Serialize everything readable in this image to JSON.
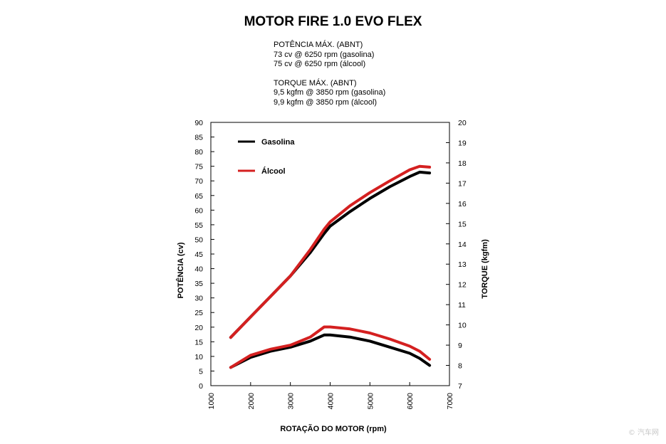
{
  "title": "MOTOR FIRE 1.0 EVO FLEX",
  "specs": {
    "power_header": "POTÊNCIA MÁX. (ABNT)",
    "power_gasolina": "73 cv @ 6250 rpm (gasolina)",
    "power_alcool": "75 cv @ 6250 rpm (álcool)",
    "torque_header": "TORQUE MÁX. (ABNT)",
    "torque_gasolina": "9,5 kgfm @ 3850 rpm (gasolina)",
    "torque_alcool": "9,9 kgfm @ 3850 rpm (álcool)"
  },
  "watermark": "© 汽车网",
  "colors": {
    "gasolina": "#000000",
    "alcool": "#d42020"
  },
  "chart_data": {
    "type": "line",
    "xlabel": "ROTAÇÃO DO MOTOR (rpm)",
    "ylabel_left": "POTÊNCIA (cv)",
    "ylabel_right": "TORQUE (kgfm)",
    "xlim": [
      1000,
      7000
    ],
    "ylim_left": [
      0,
      90
    ],
    "ylim_right": [
      7,
      20
    ],
    "x_ticks": [
      1000,
      2000,
      3000,
      4000,
      5000,
      6000,
      7000
    ],
    "y_left_ticks": [
      0,
      5,
      10,
      15,
      20,
      25,
      30,
      35,
      40,
      45,
      50,
      55,
      60,
      65,
      70,
      75,
      80,
      85,
      90
    ],
    "y_right_ticks": [
      7,
      8,
      9,
      10,
      11,
      12,
      13,
      14,
      15,
      16,
      17,
      18,
      19,
      20
    ],
    "grid": false,
    "legend_position": "top-left",
    "legend": [
      "Gasolina",
      "Álcool"
    ],
    "series": [
      {
        "name": "Gasolina",
        "quantity": "power",
        "axis": "left",
        "x": [
          1500,
          2000,
          2500,
          3000,
          3500,
          3850,
          4000,
          4500,
          5000,
          5500,
          6000,
          6250,
          6500
        ],
        "y": [
          16.5,
          23.5,
          30.5,
          37.5,
          45.5,
          52,
          54.5,
          59.5,
          64,
          68,
          71.5,
          73,
          72.7
        ]
      },
      {
        "name": "Álcool",
        "quantity": "power",
        "axis": "left",
        "x": [
          1500,
          2000,
          2500,
          3000,
          3500,
          3850,
          4000,
          4500,
          5000,
          5500,
          6000,
          6250,
          6500
        ],
        "y": [
          16.5,
          23.5,
          30.5,
          37.5,
          46.5,
          53.5,
          56,
          61.5,
          66,
          70,
          73.8,
          75,
          74.7
        ]
      },
      {
        "name": "Gasolina",
        "quantity": "torque",
        "axis": "right",
        "x": [
          1500,
          2000,
          2500,
          3000,
          3500,
          3850,
          4000,
          4500,
          5000,
          5500,
          6000,
          6250,
          6500
        ],
        "y": [
          7.9,
          8.4,
          8.7,
          8.9,
          9.2,
          9.5,
          9.5,
          9.4,
          9.2,
          8.9,
          8.6,
          8.35,
          8.0
        ]
      },
      {
        "name": "Álcool",
        "quantity": "torque",
        "axis": "right",
        "x": [
          1500,
          2000,
          2500,
          3000,
          3500,
          3850,
          4000,
          4500,
          5000,
          5500,
          6000,
          6250,
          6500
        ],
        "y": [
          7.9,
          8.5,
          8.8,
          9.0,
          9.4,
          9.9,
          9.9,
          9.8,
          9.6,
          9.3,
          8.95,
          8.7,
          8.3
        ]
      }
    ]
  }
}
